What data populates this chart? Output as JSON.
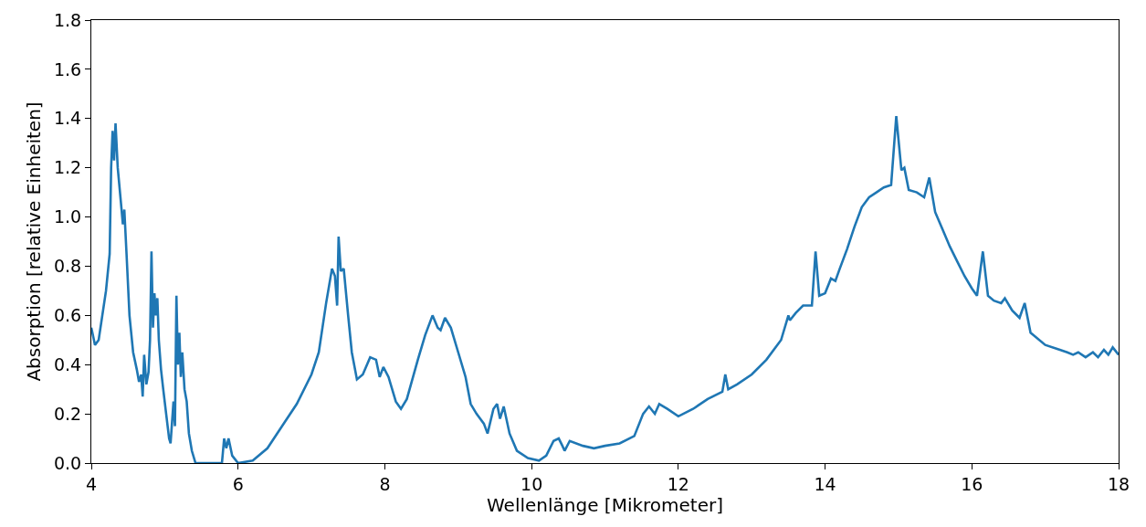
{
  "chart_data": {
    "type": "line",
    "xlabel": "Wellenlänge [Mikrometer]",
    "ylabel": "Absorption [relative Einheiten]",
    "xlim": [
      4,
      18
    ],
    "xticks": [
      4,
      6,
      8,
      10,
      12,
      14,
      16,
      18
    ],
    "ylim": [
      0,
      1.8
    ],
    "yticks": [
      {
        "value": 0,
        "label": "0.0"
      },
      0.2,
      0.4,
      0.6,
      0.8,
      {
        "value": 1,
        "label": "1.0"
      },
      1.2,
      1.4,
      1.6,
      1.8
    ],
    "marker": "none",
    "line_style": "solid",
    "series": [
      {
        "color": "#1f77b4",
        "x": [
          4.0,
          4.05,
          4.1,
          4.2,
          4.25,
          4.27,
          4.29,
          4.31,
          4.33,
          4.36,
          4.4,
          4.43,
          4.45,
          4.48,
          4.52,
          4.57,
          4.62,
          4.65,
          4.68,
          4.7,
          4.72,
          4.75,
          4.78,
          4.8,
          4.82,
          4.84,
          4.86,
          4.88,
          4.9,
          4.92,
          4.95,
          4.98,
          5.02,
          5.06,
          5.08,
          5.12,
          5.14,
          5.16,
          5.18,
          5.2,
          5.22,
          5.24,
          5.27,
          5.3,
          5.33,
          5.37,
          5.42,
          5.6,
          5.78,
          5.81,
          5.84,
          5.87,
          5.92,
          6.0,
          6.2,
          6.4,
          6.6,
          6.8,
          7.0,
          7.1,
          7.2,
          7.28,
          7.32,
          7.35,
          7.37,
          7.4,
          7.44,
          7.5,
          7.55,
          7.62,
          7.7,
          7.8,
          7.88,
          7.93,
          7.98,
          8.05,
          8.15,
          8.22,
          8.3,
          8.45,
          8.55,
          8.65,
          8.72,
          8.76,
          8.82,
          8.9,
          9.0,
          9.1,
          9.17,
          9.25,
          9.35,
          9.4,
          9.48,
          9.53,
          9.57,
          9.62,
          9.7,
          9.8,
          9.95,
          10.1,
          10.2,
          10.3,
          10.37,
          10.42,
          10.45,
          10.52,
          10.7,
          10.85,
          11.0,
          11.2,
          11.4,
          11.52,
          11.6,
          11.68,
          11.74,
          11.85,
          12.0,
          12.2,
          12.4,
          12.6,
          12.64,
          12.68,
          12.8,
          13.0,
          13.2,
          13.4,
          13.5,
          13.52,
          13.6,
          13.7,
          13.82,
          13.87,
          13.92,
          14.0,
          14.08,
          14.14,
          14.2,
          14.3,
          14.4,
          14.5,
          14.6,
          14.7,
          14.8,
          14.9,
          14.97,
          15.04,
          15.08,
          15.14,
          15.25,
          15.35,
          15.42,
          15.5,
          15.6,
          15.7,
          15.8,
          15.9,
          16.0,
          16.07,
          16.15,
          16.22,
          16.3,
          16.4,
          16.45,
          16.55,
          16.65,
          16.72,
          16.8,
          17.0,
          17.2,
          17.3,
          17.38,
          17.45,
          17.55,
          17.65,
          17.72,
          17.8,
          17.86,
          17.92,
          18.0
        ],
        "values": [
          0.55,
          0.48,
          0.5,
          0.7,
          0.85,
          1.2,
          1.35,
          1.23,
          1.38,
          1.2,
          1.07,
          0.97,
          1.03,
          0.85,
          0.6,
          0.45,
          0.38,
          0.33,
          0.36,
          0.27,
          0.44,
          0.32,
          0.37,
          0.5,
          0.86,
          0.55,
          0.69,
          0.6,
          0.67,
          0.5,
          0.38,
          0.3,
          0.2,
          0.1,
          0.08,
          0.25,
          0.15,
          0.68,
          0.4,
          0.53,
          0.35,
          0.45,
          0.3,
          0.25,
          0.12,
          0.05,
          0.0,
          0.0,
          0.0,
          0.1,
          0.06,
          0.1,
          0.03,
          0.0,
          0.01,
          0.06,
          0.15,
          0.24,
          0.36,
          0.45,
          0.65,
          0.79,
          0.76,
          0.64,
          0.92,
          0.78,
          0.79,
          0.6,
          0.45,
          0.34,
          0.36,
          0.43,
          0.42,
          0.35,
          0.39,
          0.35,
          0.25,
          0.22,
          0.26,
          0.42,
          0.52,
          0.6,
          0.55,
          0.54,
          0.59,
          0.55,
          0.45,
          0.35,
          0.24,
          0.2,
          0.16,
          0.12,
          0.22,
          0.24,
          0.18,
          0.23,
          0.12,
          0.05,
          0.02,
          0.01,
          0.03,
          0.09,
          0.1,
          0.07,
          0.05,
          0.09,
          0.07,
          0.06,
          0.07,
          0.08,
          0.11,
          0.2,
          0.23,
          0.2,
          0.24,
          0.22,
          0.19,
          0.22,
          0.26,
          0.29,
          0.36,
          0.3,
          0.32,
          0.36,
          0.42,
          0.5,
          0.6,
          0.58,
          0.61,
          0.64,
          0.64,
          0.86,
          0.68,
          0.69,
          0.75,
          0.74,
          0.79,
          0.87,
          0.96,
          1.04,
          1.08,
          1.1,
          1.12,
          1.13,
          1.41,
          1.19,
          1.2,
          1.11,
          1.1,
          1.08,
          1.16,
          1.02,
          0.95,
          0.88,
          0.82,
          0.76,
          0.71,
          0.68,
          0.86,
          0.68,
          0.66,
          0.65,
          0.67,
          0.62,
          0.59,
          0.65,
          0.53,
          0.48,
          0.46,
          0.45,
          0.44,
          0.45,
          0.43,
          0.45,
          0.43,
          0.46,
          0.44,
          0.47,
          0.44
        ]
      }
    ]
  }
}
